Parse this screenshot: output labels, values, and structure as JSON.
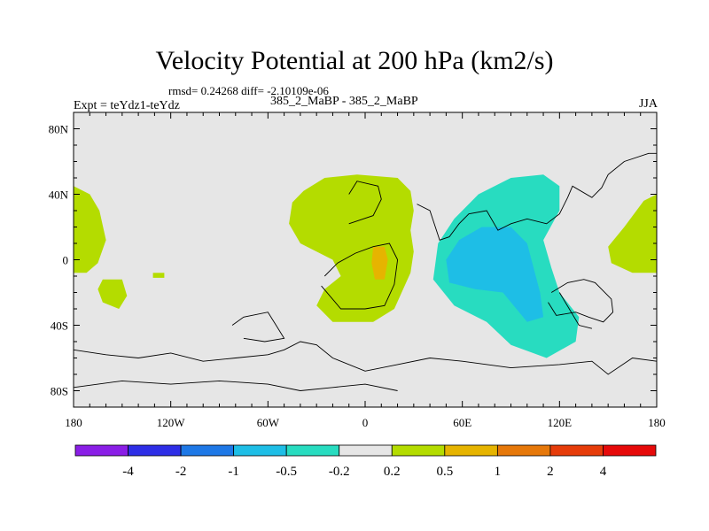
{
  "header": {
    "title": "Velocity Potential at 200 hPa (km2/s)",
    "stats": "rmsd= 0.24268 diff= -2.10109e-06",
    "experiment": "Expt = teYdz1-teYdz",
    "subtitle": "385_2_MaBP - 385_2_MaBP",
    "season": "JJA"
  },
  "chart_data": {
    "type": "heatmap",
    "title": "Velocity Potential at 200 hPa (km2/s)",
    "units": "km2/s",
    "projection": "cylindrical equidistant",
    "xlim": [
      -180,
      180
    ],
    "ylim": [
      -90,
      90
    ],
    "x_ticks": [
      {
        "value": -180,
        "label": "180"
      },
      {
        "value": -120,
        "label": "120W"
      },
      {
        "value": -60,
        "label": "60W"
      },
      {
        "value": 0,
        "label": "0"
      },
      {
        "value": 60,
        "label": "60E"
      },
      {
        "value": 120,
        "label": "120E"
      },
      {
        "value": 180,
        "label": "180"
      }
    ],
    "y_ticks": [
      {
        "value": 80,
        "label": "80N"
      },
      {
        "value": 40,
        "label": "40N"
      },
      {
        "value": 0,
        "label": "0"
      },
      {
        "value": -40,
        "label": "40S"
      },
      {
        "value": -80,
        "label": "80S"
      }
    ],
    "background_color": "#e6e6e6",
    "colorbar": {
      "levels": [
        "-4",
        "-2",
        "-1",
        "-0.5",
        "-0.2",
        "0.2",
        "0.5",
        "1",
        "2",
        "4"
      ],
      "colors": [
        "#8a1ee6",
        "#2e2ee6",
        "#1e78e6",
        "#1ebee6",
        "#28dcc0",
        "#e6e6e6",
        "#b4dc00",
        "#e6b400",
        "#e6780a",
        "#e63c0a",
        "#e60a0a"
      ]
    },
    "regions": [
      {
        "name": "west-pacific-positive-a",
        "color_index": 6,
        "value": "0.2-0.5",
        "poly": [
          [
            -180,
            45
          ],
          [
            -170,
            40
          ],
          [
            -164,
            30
          ],
          [
            -160,
            12
          ],
          [
            -165,
            -2
          ],
          [
            -172,
            -8
          ],
          [
            -180,
            -8
          ]
        ]
      },
      {
        "name": "west-pacific-positive-b",
        "color_index": 6,
        "value": "0.2-0.5",
        "poly": [
          [
            -162,
            -12
          ],
          [
            -150,
            -12
          ],
          [
            -147,
            -22
          ],
          [
            -152,
            -30
          ],
          [
            -162,
            -26
          ],
          [
            -165,
            -18
          ]
        ]
      },
      {
        "name": "east-pacific-positive-c",
        "color_index": 6,
        "value": "0.2-0.5",
        "poly": [
          [
            -131,
            -8
          ],
          [
            -124,
            -8
          ],
          [
            -124,
            -11
          ],
          [
            -131,
            -11
          ]
        ]
      },
      {
        "name": "africa-positive",
        "color_index": 6,
        "value": "0.2-0.5",
        "poly": [
          [
            -38,
            42
          ],
          [
            -25,
            50
          ],
          [
            -5,
            52
          ],
          [
            20,
            50
          ],
          [
            28,
            42
          ],
          [
            30,
            30
          ],
          [
            28,
            18
          ],
          [
            30,
            5
          ],
          [
            28,
            -8
          ],
          [
            18,
            -30
          ],
          [
            5,
            -38
          ],
          [
            -20,
            -38
          ],
          [
            -30,
            -28
          ],
          [
            -25,
            -18
          ],
          [
            -15,
            -10
          ],
          [
            -20,
            0
          ],
          [
            -40,
            10
          ],
          [
            -47,
            22
          ],
          [
            -45,
            35
          ]
        ]
      },
      {
        "name": "africa-positive-core",
        "color_index": 7,
        "value": "0.5-1",
        "poly": [
          [
            5,
            8
          ],
          [
            12,
            8
          ],
          [
            14,
            0
          ],
          [
            12,
            -12
          ],
          [
            6,
            -12
          ],
          [
            4,
            -2
          ]
        ]
      },
      {
        "name": "indian-ocean-negative",
        "color_index": 4,
        "value": "-0.5 to -0.2",
        "poly": [
          [
            45,
            10
          ],
          [
            55,
            25
          ],
          [
            70,
            40
          ],
          [
            90,
            50
          ],
          [
            110,
            52
          ],
          [
            120,
            45
          ],
          [
            120,
            30
          ],
          [
            110,
            12
          ],
          [
            115,
            -5
          ],
          [
            120,
            -20
          ],
          [
            132,
            -35
          ],
          [
            130,
            -50
          ],
          [
            112,
            -60
          ],
          [
            90,
            -52
          ],
          [
            75,
            -38
          ],
          [
            55,
            -28
          ],
          [
            42,
            -12
          ]
        ]
      },
      {
        "name": "indian-ocean-negative-core",
        "color_index": 3,
        "value": "-1 to -0.5",
        "poly": [
          [
            50,
            0
          ],
          [
            58,
            12
          ],
          [
            72,
            20
          ],
          [
            90,
            20
          ],
          [
            100,
            10
          ],
          [
            108,
            -20
          ],
          [
            110,
            -35
          ],
          [
            100,
            -38
          ],
          [
            85,
            -20
          ],
          [
            68,
            -18
          ],
          [
            52,
            -14
          ]
        ]
      },
      {
        "name": "east-pacific-positive-d",
        "color_index": 6,
        "value": "0.2-0.5",
        "poly": [
          [
            150,
            8
          ],
          [
            160,
            20
          ],
          [
            172,
            36
          ],
          [
            180,
            40
          ],
          [
            180,
            -8
          ],
          [
            165,
            -8
          ],
          [
            152,
            -2
          ]
        ]
      }
    ],
    "coastlines": [
      [
        [
          -10,
          22
        ],
        [
          5,
          27
        ],
        [
          10,
          37
        ],
        [
          8,
          45
        ],
        [
          -5,
          48
        ],
        [
          -10,
          40
        ]
      ],
      [
        [
          -27,
          -16
        ],
        [
          -15,
          -30
        ],
        [
          0,
          -30
        ],
        [
          12,
          -28
        ],
        [
          18,
          -15
        ],
        [
          20,
          0
        ],
        [
          15,
          10
        ],
        [
          5,
          8
        ],
        [
          -6,
          4
        ],
        [
          -17,
          -2
        ],
        [
          -25,
          -10
        ]
      ],
      [
        [
          32,
          34
        ],
        [
          40,
          30
        ],
        [
          46,
          12
        ],
        [
          52,
          14
        ],
        [
          58,
          22
        ],
        [
          64,
          28
        ],
        [
          75,
          30
        ],
        [
          82,
          18
        ],
        [
          90,
          22
        ],
        [
          100,
          25
        ],
        [
          112,
          22
        ],
        [
          120,
          28
        ],
        [
          125,
          38
        ],
        [
          128,
          45
        ],
        [
          140,
          38
        ],
        [
          146,
          44
        ],
        [
          150,
          52
        ],
        [
          160,
          60
        ],
        [
          175,
          65
        ],
        [
          180,
          65
        ]
      ],
      [
        [
          -180,
          -55
        ],
        [
          -160,
          -58
        ],
        [
          -140,
          -60
        ],
        [
          -120,
          -57
        ],
        [
          -100,
          -62
        ],
        [
          -80,
          -60
        ],
        [
          -60,
          -58
        ],
        [
          -50,
          -55
        ],
        [
          -40,
          -50
        ],
        [
          -30,
          -52
        ],
        [
          -20,
          -60
        ],
        [
          0,
          -68
        ],
        [
          20,
          -64
        ],
        [
          40,
          -60
        ],
        [
          60,
          -62
        ],
        [
          90,
          -66
        ],
        [
          120,
          -64
        ],
        [
          140,
          -62
        ],
        [
          150,
          -70
        ],
        [
          165,
          -60
        ],
        [
          180,
          -62
        ]
      ],
      [
        [
          -180,
          -78
        ],
        [
          -150,
          -74
        ],
        [
          -120,
          -76
        ],
        [
          -90,
          -74
        ],
        [
          -60,
          -76
        ],
        [
          -40,
          -80
        ],
        [
          -20,
          -78
        ],
        [
          0,
          -76
        ],
        [
          20,
          -80
        ]
      ],
      [
        [
          -82,
          -40
        ],
        [
          -75,
          -35
        ],
        [
          -60,
          -32
        ],
        [
          -55,
          -40
        ],
        [
          -50,
          -48
        ],
        [
          -62,
          -50
        ],
        [
          -75,
          -48
        ]
      ],
      [
        [
          115,
          -20
        ],
        [
          125,
          -14
        ],
        [
          135,
          -12
        ],
        [
          142,
          -14
        ],
        [
          152,
          -24
        ],
        [
          153,
          -32
        ],
        [
          147,
          -38
        ],
        [
          138,
          -35
        ],
        [
          130,
          -32
        ],
        [
          118,
          -34
        ],
        [
          113,
          -26
        ]
      ],
      [
        [
          120,
          -20
        ],
        [
          132,
          -40
        ],
        [
          140,
          -42
        ]
      ]
    ]
  },
  "colorbar_labels": [
    "-4",
    "-2",
    "-1",
    "-0.5",
    "-0.2",
    "0.2",
    "0.5",
    "1",
    "2",
    "4"
  ]
}
